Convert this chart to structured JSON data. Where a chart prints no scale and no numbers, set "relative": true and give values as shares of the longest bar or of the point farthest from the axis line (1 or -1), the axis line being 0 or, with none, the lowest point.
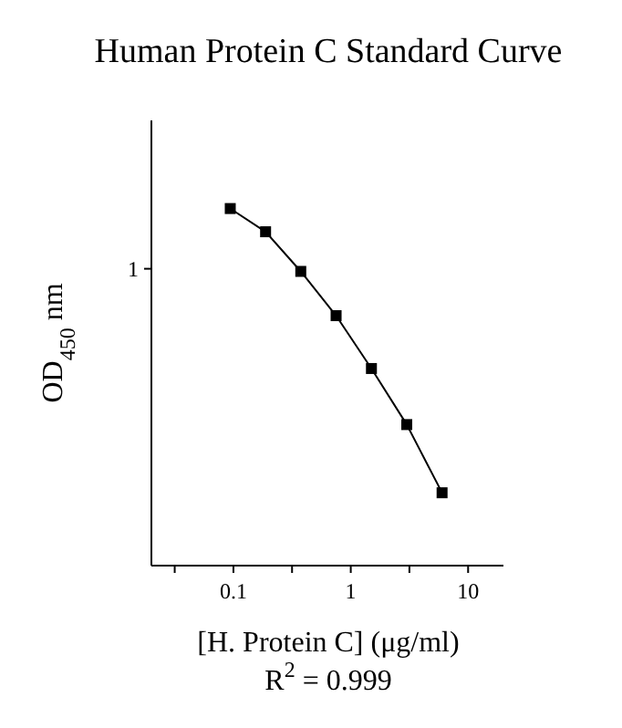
{
  "chart_data": {
    "type": "line",
    "title": "Human Protein C Standard Curve",
    "xlabel": "[H. Protein C] (μg/ml)",
    "ylabel": "OD$_{450}$ nm",
    "relative": true,
    "log": "x",
    "xlim": [
      0.02,
      20
    ],
    "xticks": [
      {
        "value": 0.0316,
        "label": null
      },
      0.1,
      {
        "value": 0.316,
        "label": null
      },
      1,
      {
        "value": 3.16,
        "label": null
      },
      10
    ],
    "x": [
      0.094,
      0.188,
      0.375,
      0.75,
      1.5,
      3,
      6
    ],
    "series": [
      {
        "color": "#000000",
        "values": [
          1,
          0.935,
          0.824,
          0.7,
          0.552,
          0.395,
          0.204
        ]
      }
    ],
    "marker": "square",
    "line_style": "solid",
    "grid": false,
    "annotations": [
      "1",
      "R$^{2}$ = 0.999"
    ]
  }
}
